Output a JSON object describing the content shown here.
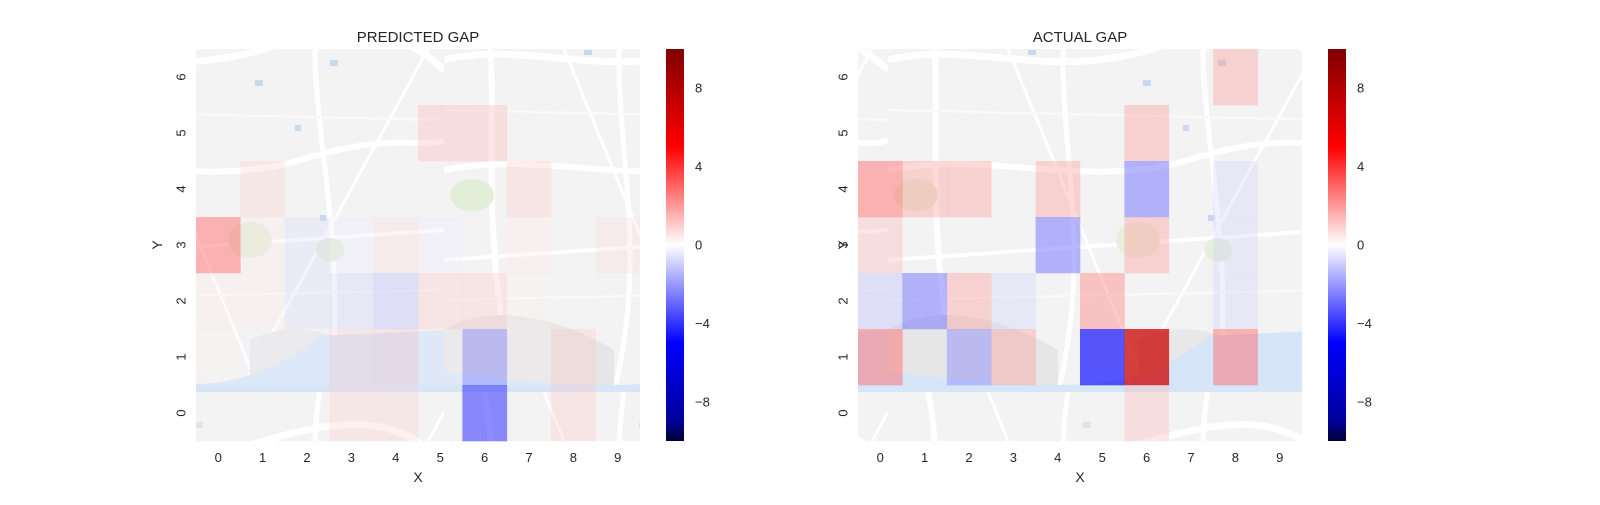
{
  "chart_data": [
    {
      "type": "heatmap",
      "title": "PREDICTED GAP",
      "xlabel": "X",
      "ylabel": "Y",
      "x_ticks": [
        "0",
        "1",
        "2",
        "3",
        "4",
        "5",
        "6",
        "7",
        "8",
        "9"
      ],
      "y_ticks": [
        "0",
        "1",
        "2",
        "3",
        "4",
        "5",
        "6"
      ],
      "background": "map",
      "colormap": "seismic",
      "vmin": -10,
      "vmax": 10,
      "colorbar_ticks": [
        {
          "value": -8,
          "label": "−8"
        },
        {
          "value": -4,
          "label": "−4"
        },
        {
          "value": 0,
          "label": "0"
        },
        {
          "value": 4,
          "label": "4"
        },
        {
          "value": 8,
          "label": "8"
        }
      ],
      "rows_top_to_bottom": [
        [
          0,
          0,
          0,
          0,
          0,
          0,
          0,
          0,
          0,
          0
        ],
        [
          0,
          0,
          0,
          0,
          0,
          1.5,
          1.5,
          0,
          0,
          0
        ],
        [
          0,
          1,
          0,
          0,
          0,
          0,
          0,
          1.2,
          0,
          0
        ],
        [
          3,
          0.5,
          -0.8,
          -0.5,
          0.8,
          -0.5,
          0,
          0.5,
          0,
          0.8
        ],
        [
          0.5,
          0.5,
          -0.8,
          -1,
          -1.5,
          1.2,
          1.2,
          0.3,
          0,
          0
        ],
        [
          0.3,
          -0.2,
          -0.2,
          1,
          1.2,
          0.2,
          -2.5,
          0.2,
          1.2,
          0
        ],
        [
          0,
          0,
          0,
          1,
          1,
          0,
          -4,
          0,
          1.2,
          0
        ]
      ]
    },
    {
      "type": "heatmap",
      "title": "ACTUAL GAP",
      "xlabel": "X",
      "ylabel": "Y",
      "x_ticks": [
        "0",
        "1",
        "2",
        "3",
        "4",
        "5",
        "6",
        "7",
        "8",
        "9"
      ],
      "y_ticks": [
        "0",
        "1",
        "2",
        "3",
        "4",
        "5",
        "6"
      ],
      "background": "map",
      "colormap": "seismic",
      "vmin": -10,
      "vmax": 10,
      "colorbar_ticks": [
        {
          "value": -8,
          "label": "−8"
        },
        {
          "value": -4,
          "label": "−4"
        },
        {
          "value": 0,
          "label": "0"
        },
        {
          "value": 4,
          "label": "4"
        },
        {
          "value": 8,
          "label": "8"
        }
      ],
      "rows_top_to_bottom": [
        [
          0,
          0,
          0,
          0,
          0,
          0,
          0,
          0,
          2,
          0
        ],
        [
          0,
          0,
          0,
          0,
          0,
          0,
          2,
          0,
          0,
          0
        ],
        [
          3,
          2,
          2,
          0,
          2,
          0,
          -3,
          0,
          -1,
          0
        ],
        [
          1.5,
          0,
          0,
          0,
          -3,
          0,
          2,
          0,
          -1,
          0
        ],
        [
          -1.5,
          -3,
          2,
          -1,
          0,
          2.5,
          0,
          0,
          -1,
          0
        ],
        [
          3,
          0,
          -2.5,
          2,
          0,
          -5,
          7,
          0,
          3,
          0
        ],
        [
          0,
          0,
          0,
          0,
          0,
          0,
          1.5,
          0,
          0,
          0
        ]
      ]
    }
  ]
}
